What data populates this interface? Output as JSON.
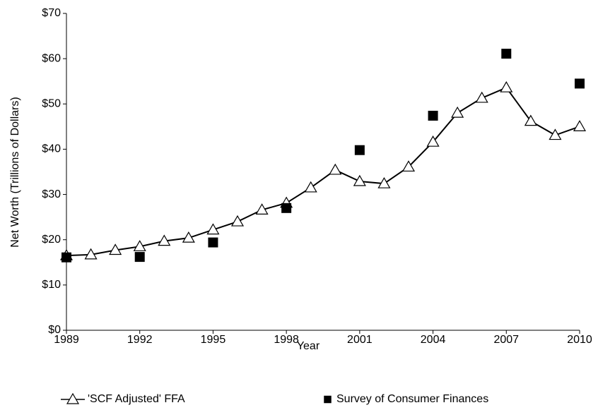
{
  "chart_data": {
    "type": "line",
    "xlabel": "Year",
    "ylabel": "Net Worth (Trillions of Dollars)",
    "xlim": [
      1989,
      2010
    ],
    "xticks": [
      1989,
      1992,
      1995,
      1998,
      2001,
      2004,
      2007,
      2010
    ],
    "ylim": [
      0,
      70
    ],
    "yticks": [
      {
        "value": 0,
        "label": "$0"
      },
      {
        "value": 10,
        "label": "$10"
      },
      {
        "value": 20,
        "label": "$20"
      },
      {
        "value": 30,
        "label": "$30"
      },
      {
        "value": 40,
        "label": "$40"
      },
      {
        "value": 50,
        "label": "$50"
      },
      {
        "value": 60,
        "label": "$60"
      },
      {
        "value": 70,
        "label": "$70"
      }
    ],
    "grid": false,
    "legend": "bottom",
    "series": [
      {
        "name": "'SCF Adjusted' FFA",
        "color": "#000000",
        "marker": "triangle",
        "line": true,
        "x": [
          1989,
          1990,
          1991,
          1992,
          1993,
          1994,
          1995,
          1996,
          1997,
          1998,
          1999,
          2000,
          2001,
          2002,
          2003,
          2004,
          2005,
          2006,
          2007,
          2008,
          2009,
          2010
        ],
        "values": [
          16.5,
          16.7,
          17.7,
          18.5,
          19.7,
          20.4,
          22.2,
          24.0,
          26.6,
          28.1,
          31.5,
          35.4,
          32.9,
          32.4,
          36.1,
          41.6,
          48.0,
          51.3,
          53.6,
          46.2,
          43.1,
          45.0
        ]
      },
      {
        "name": "Survey of Consumer Finances",
        "color": "#000000",
        "marker": "square",
        "line": false,
        "x": [
          1989,
          1992,
          1995,
          1998,
          2001,
          2004,
          2007,
          2010
        ],
        "values": [
          16.1,
          16.2,
          19.4,
          27.0,
          39.8,
          47.4,
          61.1,
          54.5
        ]
      }
    ]
  }
}
